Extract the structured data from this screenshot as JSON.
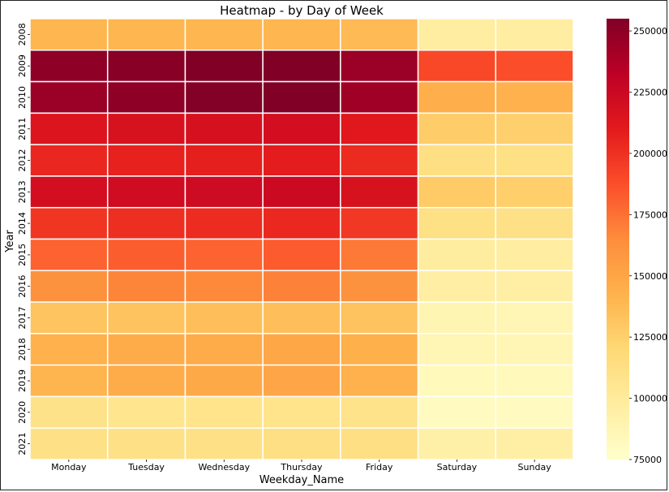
{
  "chart_data": {
    "type": "heatmap",
    "title": "Heatmap - by Day of Week",
    "xlabel": "Weekday_Name",
    "ylabel": "Year",
    "x_categories": [
      "Monday",
      "Tuesday",
      "Wednesday",
      "Thursday",
      "Friday",
      "Saturday",
      "Sunday"
    ],
    "y_categories": [
      "2008",
      "2009",
      "2010",
      "2011",
      "2012",
      "2013",
      "2014",
      "2015",
      "2016",
      "2017",
      "2018",
      "2019",
      "2020",
      "2021"
    ],
    "values": [
      [
        140000,
        140000,
        140000,
        140000,
        138000,
        97000,
        97000
      ],
      [
        250000,
        252000,
        255000,
        256000,
        245000,
        190000,
        188000
      ],
      [
        245000,
        250000,
        254000,
        255000,
        243000,
        145000,
        143000
      ],
      [
        215000,
        217000,
        218000,
        220000,
        212000,
        127000,
        125000
      ],
      [
        205000,
        207000,
        208000,
        209000,
        203000,
        113000,
        112000
      ],
      [
        220000,
        222000,
        223000,
        224000,
        217000,
        128000,
        126000
      ],
      [
        198000,
        201000,
        202000,
        204000,
        197000,
        112000,
        111000
      ],
      [
        180000,
        182000,
        180000,
        183000,
        172000,
        98000,
        97000
      ],
      [
        162000,
        168000,
        166000,
        169000,
        162000,
        96000,
        95000
      ],
      [
        132000,
        133000,
        135000,
        135000,
        133000,
        88000,
        87000
      ],
      [
        143000,
        146000,
        147000,
        149000,
        144000,
        87000,
        86000
      ],
      [
        141000,
        146000,
        148000,
        150000,
        143000,
        83000,
        83000
      ],
      [
        110000,
        107000,
        108000,
        108000,
        109000,
        81000,
        81000
      ],
      [
        111000,
        111000,
        111000,
        113000,
        113000,
        94000,
        95000
      ]
    ],
    "vmin": 75000,
    "vmax": 255000,
    "colormap": "YlOrRd",
    "colorbar_ticks": [
      75000,
      100000,
      125000,
      150000,
      175000,
      200000,
      225000,
      250000
    ],
    "colorbar_tick_labels": [
      "75000",
      "100000",
      "125000",
      "150000",
      "175000",
      "200000",
      "225000",
      "250000"
    ],
    "grid_line_color": "#ffffff"
  }
}
